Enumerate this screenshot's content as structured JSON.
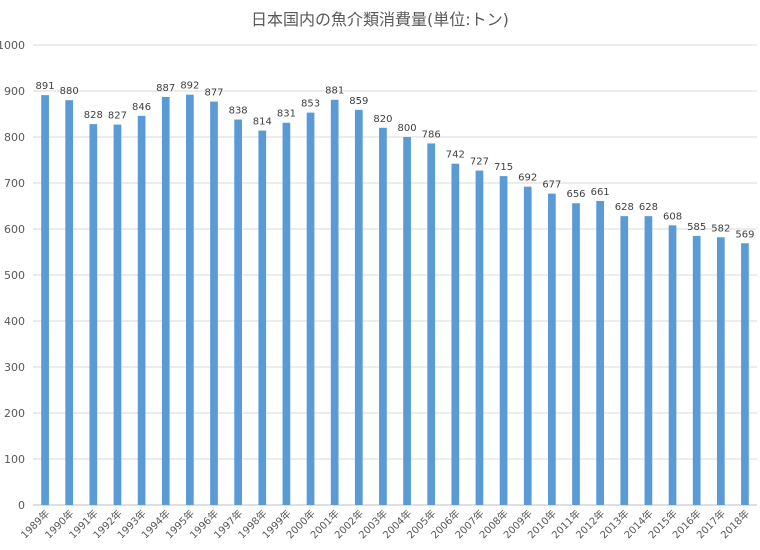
{
  "chart_data": {
    "type": "bar",
    "title": "日本国内の魚介類消費量(単位:トン)",
    "xlabel": "",
    "ylabel": "",
    "ylim": [
      0,
      1000
    ],
    "y_ticks": [
      0,
      100,
      200,
      300,
      400,
      500,
      600,
      700,
      800,
      900,
      1000
    ],
    "grid": true,
    "legend": "none",
    "bar_color": "#5b9bd5",
    "categories": [
      "1989年",
      "1990年",
      "1991年",
      "1992年",
      "1993年",
      "1994年",
      "1995年",
      "1996年",
      "1997年",
      "1998年",
      "1999年",
      "2000年",
      "2001年",
      "2002年",
      "2003年",
      "2004年",
      "2005年",
      "2006年",
      "2007年",
      "2008年",
      "2009年",
      "2010年",
      "2011年",
      "2012年",
      "2013年",
      "2014年",
      "2015年",
      "2016年",
      "2017年",
      "2018年"
    ],
    "values": [
      891,
      880,
      828,
      827,
      846,
      887,
      892,
      877,
      838,
      814,
      831,
      853,
      881,
      859,
      820,
      800,
      786,
      742,
      727,
      715,
      692,
      677,
      656,
      661,
      628,
      628,
      608,
      585,
      582,
      569
    ]
  }
}
